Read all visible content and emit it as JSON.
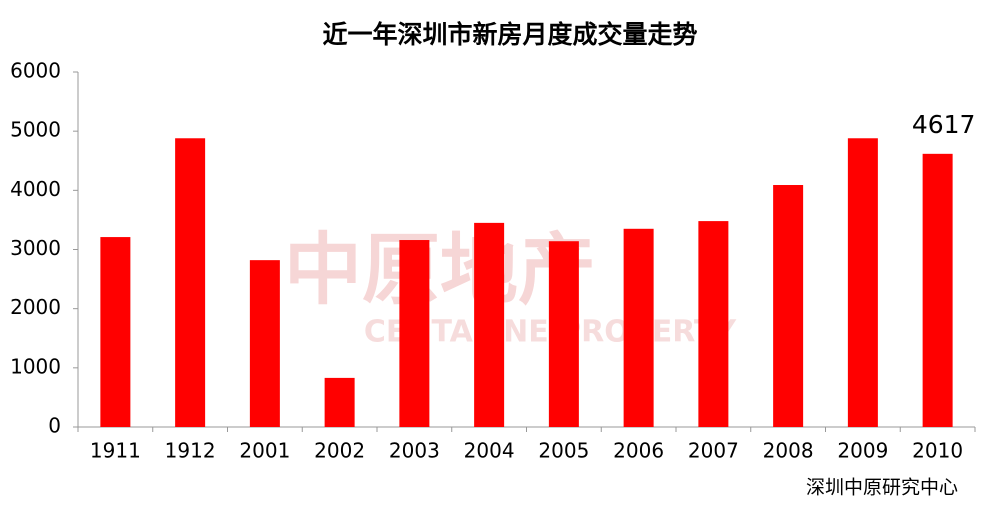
{
  "chart_data": {
    "type": "bar",
    "title": "近一年深圳市新房月度成交量走势",
    "categories": [
      "1911",
      "1912",
      "2001",
      "2002",
      "2003",
      "2004",
      "2005",
      "2006",
      "2007",
      "2008",
      "2009",
      "2010"
    ],
    "values": [
      3210,
      4880,
      2820,
      830,
      3160,
      3450,
      3140,
      3350,
      3480,
      4090,
      4880,
      4617
    ],
    "value_labels": [
      null,
      null,
      null,
      null,
      null,
      null,
      null,
      null,
      null,
      null,
      null,
      "4617"
    ],
    "color": "#ff0000",
    "ylim": [
      0,
      6000
    ],
    "yticks": [
      0,
      1000,
      2000,
      3000,
      4000,
      5000,
      6000
    ],
    "grid": false,
    "source": "深圳中原研究中心",
    "watermark": "中原地产",
    "watermark_en": "CENTALINE PROPERTY"
  }
}
